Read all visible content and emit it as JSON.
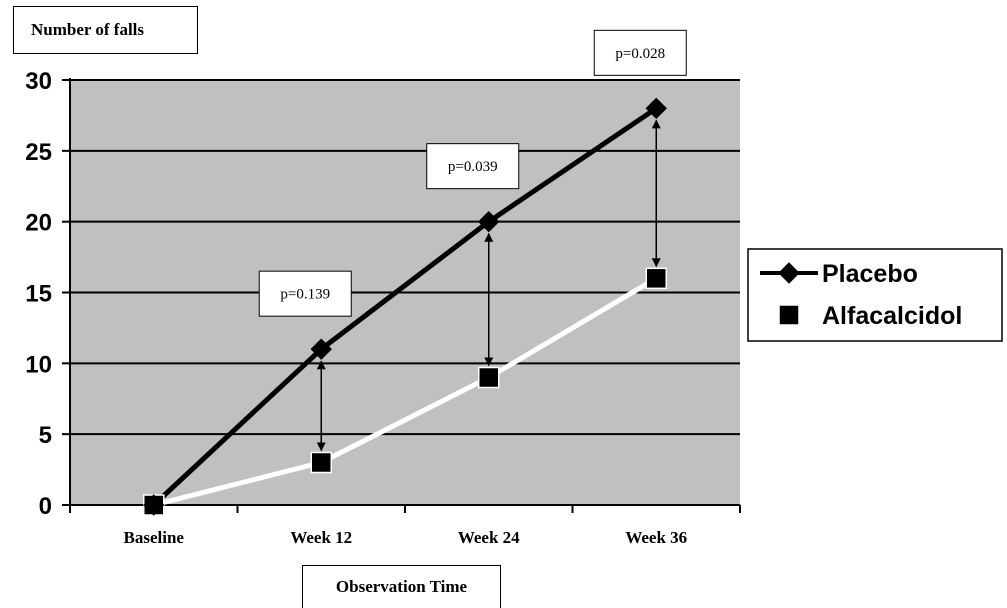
{
  "chart_data": {
    "type": "line",
    "ylabel": "Number of falls",
    "xlabel": "Observation Time",
    "categories": [
      "Baseline",
      "Week 12",
      "Week 24",
      "Week 36"
    ],
    "ylim": [
      0,
      30
    ],
    "yticks": [
      0,
      5,
      10,
      15,
      20,
      25,
      30
    ],
    "grid": true,
    "legend_position": "right",
    "series": [
      {
        "name": "Placebo",
        "values": [
          0,
          11,
          20,
          28
        ],
        "color": "#000000",
        "marker": "diamond"
      },
      {
        "name": "Alfacalcidol",
        "values": [
          0,
          3,
          9,
          16
        ],
        "color": "#ffffff",
        "marker": "square"
      }
    ],
    "annotations": [
      {
        "category": "Week 12",
        "text": "p=0.139"
      },
      {
        "category": "Week 24",
        "text": "p=0.039"
      },
      {
        "category": "Week 36",
        "text": "p=0.028"
      }
    ],
    "colors": {
      "plot_background": "#c0c0c0",
      "gridline": "#000000"
    }
  }
}
